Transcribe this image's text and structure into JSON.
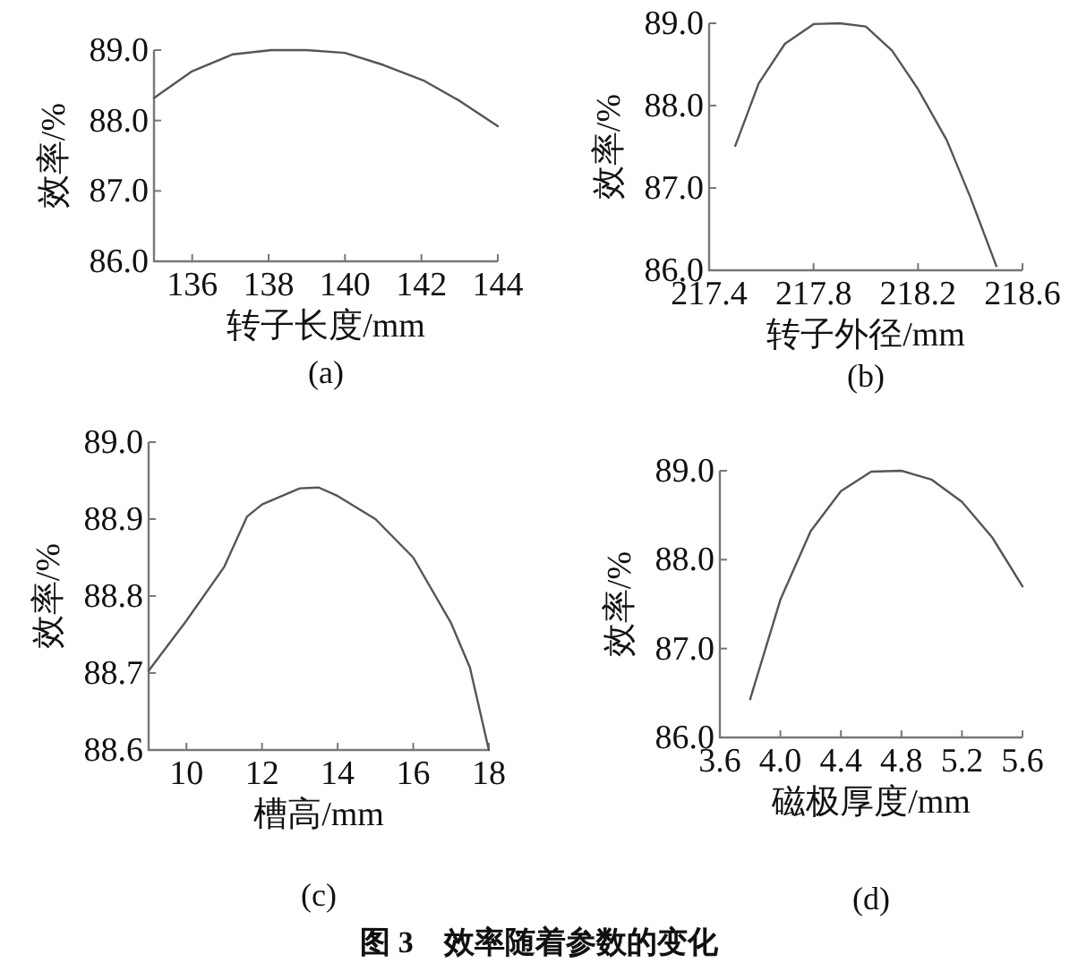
{
  "chart_data": [
    {
      "type": "line",
      "xlabel": "转子长度/mm",
      "ylabel": "效率/%",
      "annotations": [
        "(a)"
      ],
      "xlim": [
        135,
        144
      ],
      "xticks": [
        136,
        138,
        140,
        142,
        144
      ],
      "ylim": [
        86,
        89
      ],
      "yticks": [
        {
          "value": 86,
          "label": "86.0"
        },
        {
          "value": 87,
          "label": "87.0"
        },
        {
          "value": 88,
          "label": "88.0"
        },
        {
          "value": 89,
          "label": "89.0"
        }
      ],
      "grid": false,
      "series": [
        {
          "color": "#555555",
          "x": [
            135,
            136,
            137.06,
            138.07,
            139,
            140,
            141,
            142.05,
            143,
            144
          ],
          "values": [
            88.32,
            88.7,
            88.94,
            89.0,
            89.0,
            88.96,
            88.79,
            88.57,
            88.28,
            87.92
          ]
        }
      ]
    },
    {
      "type": "line",
      "xlabel": "转子外径/mm",
      "ylabel": "效率/%",
      "annotations": [
        "(b)"
      ],
      "xlim": [
        217.4,
        218.6
      ],
      "xticks": [
        217.4,
        217.8,
        218.2,
        218.6
      ],
      "ylim": [
        86,
        89
      ],
      "yticks": [
        {
          "value": 86,
          "label": "86.0"
        },
        {
          "value": 87,
          "label": "87.0"
        },
        {
          "value": 88,
          "label": "88.0"
        },
        {
          "value": 89,
          "label": "89.0"
        }
      ],
      "grid": false,
      "series": [
        {
          "color": "#555555",
          "x": [
            217.5,
            217.59,
            217.69,
            217.8,
            217.9,
            218.0,
            218.1,
            218.2,
            218.31,
            218.4,
            218.5
          ],
          "values": [
            87.51,
            88.27,
            88.75,
            88.99,
            89.0,
            88.96,
            88.67,
            88.2,
            87.58,
            86.89,
            86.05
          ]
        }
      ]
    },
    {
      "type": "line",
      "xlabel": "槽高/mm",
      "ylabel": "效率/%",
      "annotations": [
        "(c)"
      ],
      "xlim": [
        9,
        18
      ],
      "xticks": [
        10,
        12,
        14,
        16,
        18
      ],
      "ylim": [
        88.6,
        89
      ],
      "yticks": [
        88.6,
        88.7,
        88.8,
        88.9,
        {
          "value": 89,
          "label": "89.0"
        }
      ],
      "grid": false,
      "series": [
        {
          "color": "#555555",
          "x": [
            9,
            10,
            11,
            11.6,
            12,
            13,
            13.5,
            14,
            15,
            16,
            17,
            17.5,
            18
          ],
          "values": [
            88.703,
            88.768,
            88.838,
            88.903,
            88.919,
            88.94,
            88.941,
            88.93,
            88.9,
            88.85,
            88.765,
            88.707,
            88.6
          ]
        }
      ]
    },
    {
      "type": "line",
      "xlabel": "磁极厚度/mm",
      "ylabel": "效率/%",
      "annotations": [
        "(d)",
        "图 3　效率随着参数的变化"
      ],
      "xlim": [
        3.6,
        5.6
      ],
      "xticks": [
        3.6,
        {
          "value": 4,
          "label": "4.0"
        },
        4.4,
        4.8,
        5.2,
        5.6
      ],
      "ylim": [
        86,
        89
      ],
      "yticks": [
        {
          "value": 86,
          "label": "86.0"
        },
        {
          "value": 87,
          "label": "87.0"
        },
        {
          "value": 88,
          "label": "88.0"
        },
        {
          "value": 89,
          "label": "89.0"
        }
      ],
      "grid": false,
      "series": [
        {
          "color": "#555555",
          "x": [
            3.8,
            4.0,
            4.2,
            4.4,
            4.6,
            4.8,
            5.0,
            5.2,
            5.4,
            5.6
          ],
          "values": [
            86.43,
            87.55,
            88.32,
            88.77,
            88.99,
            89.0,
            88.9,
            88.65,
            88.25,
            87.7
          ]
        }
      ]
    }
  ]
}
